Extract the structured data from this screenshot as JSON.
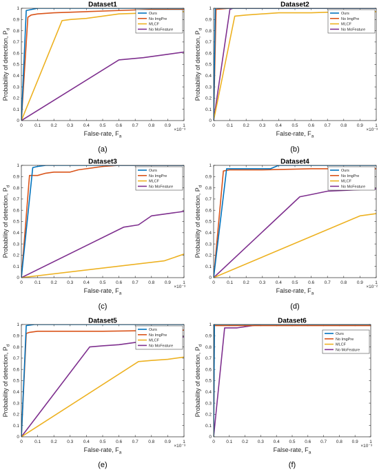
{
  "colors": {
    "ours": "#0072BD",
    "no_imgpre": "#D95319",
    "mlcf": "#EDB120",
    "no_mofeature": "#7E2F8E"
  },
  "chart_data": [
    {
      "type": "line",
      "panel_label": "(a)",
      "title": "Dataset1",
      "xlabel": "False-rate, F",
      "xlabel_sub": "a",
      "ylabel": "Probability of detection, P",
      "ylabel_sub": "d",
      "xlim": [
        0,
        1
      ],
      "ylim": [
        0,
        1
      ],
      "x_exponent": "×10⁻³",
      "xticks": [
        "0",
        "0.1",
        "0.2",
        "0.3",
        "0.4",
        "0.5",
        "0.6",
        "0.7",
        "0.8",
        "0.9",
        "1"
      ],
      "yticks": [
        "0",
        "0.1",
        "0.2",
        "0.3",
        "0.4",
        "0.5",
        "0.6",
        "0.7",
        "0.8",
        "0.9",
        "1"
      ],
      "legend_position": "top-right",
      "series": [
        {
          "name": "Ours",
          "color_key": "ours",
          "x": [
            0,
            0.03,
            0.1,
            0.2,
            1
          ],
          "y": [
            0,
            0.98,
            1,
            1,
            1
          ]
        },
        {
          "name": "No ImgPre",
          "color_key": "no_imgpre",
          "x": [
            0,
            0.04,
            0.06,
            0.1,
            0.2,
            0.4,
            0.6,
            0.8,
            1
          ],
          "y": [
            0,
            0.92,
            0.94,
            0.95,
            0.96,
            0.97,
            0.98,
            0.99,
            0.99
          ]
        },
        {
          "name": "MLCF",
          "color_key": "mlcf",
          "x": [
            0,
            0.25,
            0.3,
            0.4,
            0.5,
            0.6,
            0.8,
            1
          ],
          "y": [
            0,
            0.89,
            0.9,
            0.91,
            0.93,
            0.95,
            0.96,
            0.97
          ]
        },
        {
          "name": "No MoFeature",
          "color_key": "no_mofeature",
          "x": [
            0,
            0.6,
            0.75,
            0.9,
            1
          ],
          "y": [
            0,
            0.54,
            0.56,
            0.59,
            0.61
          ]
        }
      ]
    },
    {
      "type": "line",
      "panel_label": "(b)",
      "title": "Dataset2",
      "xlabel": "False-rate, F",
      "xlabel_sub": "a",
      "ylabel": "Probability of detection, P",
      "ylabel_sub": "d",
      "xlim": [
        0,
        1
      ],
      "ylim": [
        0,
        1
      ],
      "x_exponent": "×10⁻³",
      "xticks": [
        "0",
        "0.1",
        "0.2",
        "0.3",
        "0.4",
        "0.5",
        "0.6",
        "0.7",
        "0.8",
        "0.9",
        "1"
      ],
      "yticks": [
        "0",
        "0.1",
        "0.2",
        "0.3",
        "0.4",
        "0.5",
        "0.6",
        "0.7",
        "0.8",
        "0.9",
        "1"
      ],
      "legend_position": "top-right",
      "series": [
        {
          "name": "Ours",
          "color_key": "ours",
          "x": [
            0,
            0.01,
            1
          ],
          "y": [
            0,
            1,
            1
          ]
        },
        {
          "name": "No ImgPre",
          "color_key": "no_imgpre",
          "x": [
            0,
            0.015,
            0.1,
            1
          ],
          "y": [
            0,
            0.99,
            1,
            1
          ]
        },
        {
          "name": "MLCF",
          "color_key": "mlcf",
          "x": [
            0,
            0.13,
            0.2,
            0.4,
            0.6,
            0.8,
            1
          ],
          "y": [
            0,
            0.93,
            0.94,
            0.96,
            0.96,
            0.97,
            0.97
          ]
        },
        {
          "name": "No MoFeature",
          "color_key": "no_mofeature",
          "x": [
            0,
            0.1,
            0.12,
            1
          ],
          "y": [
            0,
            0.99,
            1,
            1
          ]
        }
      ]
    },
    {
      "type": "line",
      "panel_label": "(c)",
      "title": "Dataset3",
      "xlabel": "False-rate, F",
      "xlabel_sub": "a",
      "ylabel": "Probability of detection, P",
      "ylabel_sub": "d",
      "xlim": [
        0,
        1
      ],
      "ylim": [
        0,
        1
      ],
      "x_exponent": "×10⁻³",
      "xticks": [
        "0",
        "0.1",
        "0.2",
        "0.3",
        "0.4",
        "0.5",
        "0.6",
        "0.7",
        "0.8",
        "0.9",
        "1"
      ],
      "yticks": [
        "0",
        "0.1",
        "0.2",
        "0.3",
        "0.4",
        "0.5",
        "0.6",
        "0.7",
        "0.8",
        "0.9",
        "1"
      ],
      "legend_position": "top-right",
      "series": [
        {
          "name": "Ours",
          "color_key": "ours",
          "x": [
            0,
            0.07,
            0.1,
            0.15,
            1
          ],
          "y": [
            0,
            0.98,
            0.99,
            1,
            1
          ]
        },
        {
          "name": "No ImgPre",
          "color_key": "no_imgpre",
          "x": [
            0,
            0.05,
            0.1,
            0.15,
            0.2,
            0.3,
            0.35,
            0.4,
            0.5,
            0.6,
            1
          ],
          "y": [
            0,
            0.91,
            0.91,
            0.93,
            0.94,
            0.94,
            0.96,
            0.97,
            0.99,
            1,
            1
          ]
        },
        {
          "name": "MLCF",
          "color_key": "mlcf",
          "x": [
            0,
            0.88,
            1
          ],
          "y": [
            0,
            0.15,
            0.21
          ]
        },
        {
          "name": "No MoFeature",
          "color_key": "no_mofeature",
          "x": [
            0,
            0.63,
            0.72,
            0.8,
            0.9,
            1
          ],
          "y": [
            0,
            0.45,
            0.47,
            0.55,
            0.57,
            0.59
          ]
        }
      ]
    },
    {
      "type": "line",
      "panel_label": "(d)",
      "title": "Dataset4",
      "xlabel": "False-rate, F",
      "xlabel_sub": "a",
      "ylabel": "Probability of detection, P",
      "ylabel_sub": "d",
      "xlim": [
        0,
        1
      ],
      "ylim": [
        0,
        1
      ],
      "x_exponent": "×10⁻²",
      "xticks": [
        "0",
        "0.1",
        "0.2",
        "0.3",
        "0.4",
        "0.5",
        "0.6",
        "0.7",
        "0.8",
        "0.9",
        "1"
      ],
      "yticks": [
        "0",
        "0.1",
        "0.2",
        "0.3",
        "0.4",
        "0.5",
        "0.6",
        "0.7",
        "0.8",
        "0.9",
        "1"
      ],
      "legend_position": "top-right",
      "series": [
        {
          "name": "Ours",
          "color_key": "ours",
          "x": [
            0,
            0.08,
            0.35,
            0.4,
            1
          ],
          "y": [
            0,
            0.97,
            0.97,
            1,
            1
          ]
        },
        {
          "name": "No ImgPre",
          "color_key": "no_imgpre",
          "x": [
            0,
            0.06,
            0.1,
            0.3,
            0.6,
            1
          ],
          "y": [
            0,
            0.95,
            0.96,
            0.96,
            0.97,
            0.97
          ]
        },
        {
          "name": "MLCF",
          "color_key": "mlcf",
          "x": [
            0,
            0.9,
            1
          ],
          "y": [
            0,
            0.55,
            0.57
          ]
        },
        {
          "name": "No MoFeature",
          "color_key": "no_mofeature",
          "x": [
            0,
            0.53,
            0.6,
            0.7,
            1
          ],
          "y": [
            0,
            0.72,
            0.74,
            0.77,
            0.79
          ]
        }
      ]
    },
    {
      "type": "line",
      "panel_label": "(e)",
      "title": "Dataset5",
      "xlabel": "False-rate, F",
      "xlabel_sub": "a",
      "ylabel": "Probability of detection, P",
      "ylabel_sub": "d",
      "xlim": [
        0,
        1
      ],
      "ylim": [
        0,
        1
      ],
      "x_exponent": "×10⁻³",
      "xticks": [
        "0",
        "0.1",
        "0.2",
        "0.3",
        "0.4",
        "0.5",
        "0.6",
        "0.7",
        "0.8",
        "0.9",
        "1"
      ],
      "yticks": [
        "0",
        "0.1",
        "0.2",
        "0.3",
        "0.4",
        "0.5",
        "0.6",
        "0.7",
        "0.8",
        "0.9",
        "1"
      ],
      "legend_position": "top-right",
      "series": [
        {
          "name": "Ours",
          "color_key": "ours",
          "x": [
            0,
            0.03,
            0.08,
            1
          ],
          "y": [
            0,
            0.99,
            1,
            1
          ]
        },
        {
          "name": "No ImgPre",
          "color_key": "no_imgpre",
          "x": [
            0,
            0.03,
            0.05,
            0.1,
            0.5,
            1
          ],
          "y": [
            0,
            0.92,
            0.93,
            0.94,
            0.94,
            0.95
          ]
        },
        {
          "name": "MLCF",
          "color_key": "mlcf",
          "x": [
            0,
            0.72,
            0.8,
            0.9,
            1
          ],
          "y": [
            0,
            0.67,
            0.68,
            0.69,
            0.71
          ]
        },
        {
          "name": "No MoFeature",
          "color_key": "no_mofeature",
          "x": [
            0,
            0.42,
            0.5,
            0.6,
            0.7,
            0.8,
            0.9,
            1
          ],
          "y": [
            0,
            0.8,
            0.81,
            0.82,
            0.84,
            0.86,
            0.88,
            0.89
          ]
        }
      ]
    },
    {
      "type": "line",
      "panel_label": "(f)",
      "title": "Dataset6",
      "xlabel": "False-rate, F",
      "xlabel_sub": "a",
      "ylabel": "Probability of detection, P",
      "ylabel_sub": "d",
      "xlim": [
        0,
        1
      ],
      "ylim": [
        0,
        1
      ],
      "x_exponent": "×10⁻³",
      "xticks": [
        "0",
        "0.1",
        "0.2",
        "0.3",
        "0.4",
        "0.5",
        "0.6",
        "0.7",
        "0.8",
        "0.9",
        "1"
      ],
      "yticks": [
        "0",
        "0.1",
        "0.2",
        "0.3",
        "0.4",
        "0.5",
        "0.6",
        "0.7",
        "0.8",
        "0.9",
        "1"
      ],
      "legend_position": "top-right",
      "series": [
        {
          "name": "Ours",
          "color_key": "ours",
          "x": [
            0,
            0.005,
            1
          ],
          "y": [
            0,
            1,
            1
          ]
        },
        {
          "name": "No ImgPre",
          "color_key": "no_imgpre",
          "x": [
            0,
            0.005,
            1
          ],
          "y": [
            0,
            0.99,
            0.99
          ]
        },
        {
          "name": "MLCF",
          "color_key": "mlcf",
          "x": [
            0,
            0.004,
            1
          ],
          "y": [
            0,
            1,
            1
          ]
        },
        {
          "name": "No MoFeature",
          "color_key": "no_mofeature",
          "x": [
            0,
            0.07,
            0.15,
            0.2,
            0.3,
            1
          ],
          "y": [
            0,
            0.97,
            0.97,
            0.98,
            1,
            1
          ]
        }
      ]
    }
  ]
}
